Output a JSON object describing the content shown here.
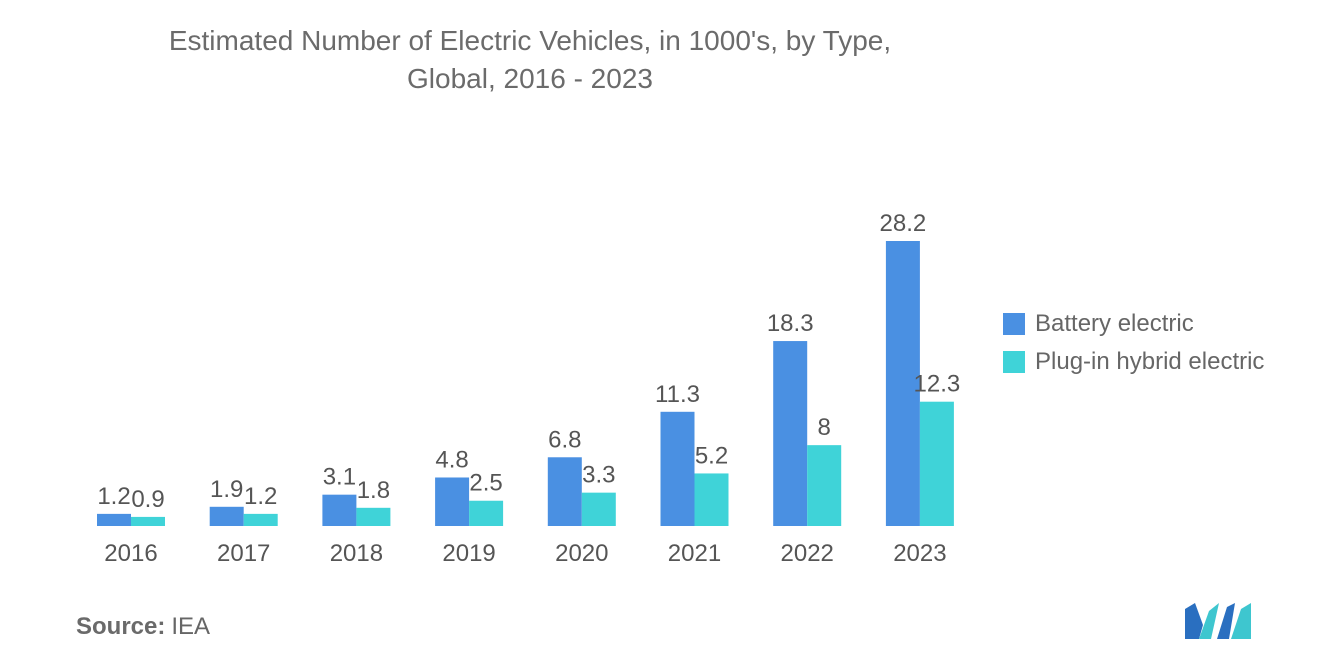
{
  "title": {
    "line1": "Estimated Number of Electric Vehicles, in 1000's, by Type,",
    "line2": "Global, 2016 - 2023"
  },
  "source": {
    "label": "Source:",
    "value": "IEA"
  },
  "colors": {
    "battery": "#4a90e2",
    "plugin": "#3fd3d8",
    "axis_text": "#555555"
  },
  "chart_data": {
    "type": "bar",
    "title": "Estimated Number of Electric Vehicles, in 1000's, by Type, Global, 2016 - 2023",
    "categories": [
      "2016",
      "2017",
      "2018",
      "2019",
      "2020",
      "2021",
      "2022",
      "2023"
    ],
    "series": [
      {
        "name": "Battery electric",
        "values": [
          1.2,
          1.9,
          3.1,
          4.8,
          6.8,
          11.3,
          18.3,
          28.2
        ]
      },
      {
        "name": "Plug-in hybrid electric",
        "values": [
          0.9,
          1.2,
          1.8,
          2.5,
          3.3,
          5.2,
          8,
          12.3
        ]
      }
    ],
    "xlabel": "",
    "ylabel": "",
    "ylim": [
      0,
      30
    ],
    "grid": false,
    "legend": "right"
  }
}
